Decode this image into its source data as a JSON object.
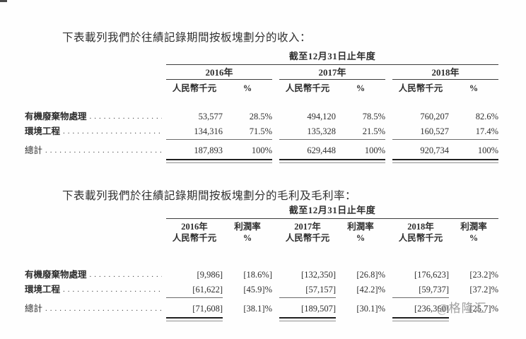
{
  "intro": {
    "revenue": "下表載列我們於往績記錄期間按板塊劃分的收入：",
    "gross_profit": "下表載列我們於往績記錄期間按板塊劃分的毛利及毛利率："
  },
  "leader_dots": "...........................................................",
  "revenue_table": {
    "period_header": "截至12月31日止年度",
    "years": [
      "2016年",
      "2017年",
      "2018年"
    ],
    "unit_headers": [
      "人民幣千元",
      "%",
      "人民幣千元",
      "%",
      "人民幣千元",
      "%"
    ],
    "rows": [
      {
        "label": "有機廢棄物處理",
        "values": [
          "53,577",
          "28.5%",
          "494,120",
          "78.5%",
          "760,207",
          "82.6%"
        ]
      },
      {
        "label": "環境工程",
        "values": [
          "134,316",
          "71.5%",
          "135,328",
          "21.5%",
          "160,527",
          "17.4%"
        ]
      }
    ],
    "total_row": {
      "label": "總計",
      "values": [
        "187,893",
        "100%",
        "629,448",
        "100%",
        "920,734",
        "100%"
      ]
    }
  },
  "gross_profit_table": {
    "period_header": "截至12月31日止年度",
    "col_headers": [
      "2016年",
      "利潤率",
      "2017年",
      "利潤率",
      "2018年",
      "利潤率"
    ],
    "unit_headers": [
      "人民幣千元",
      "%",
      "人民幣千元",
      "%",
      "人民幣千元",
      "%"
    ],
    "rows": [
      {
        "label": "有機廢棄物處理",
        "values": [
          "[9,986]",
          "[18.6%]",
          "[132,350]",
          "[26.8]%",
          "[176,623]",
          "[23.2]%"
        ]
      },
      {
        "label": "環境工程",
        "values": [
          "[61,622]",
          "[45.9]%",
          "[57,157]",
          "[42.2]%",
          "[59,737]",
          "[37.2]%"
        ]
      }
    ],
    "total_row": {
      "label": "總計",
      "values": [
        "[71,608]",
        "[38.1]%",
        "[189,507]",
        "[30.1]%",
        "[236,360]",
        "[25.7]%"
      ]
    }
  },
  "watermark": "@格隆汇",
  "colors": {
    "ink": "#2e2e2e",
    "rule": "#3c3c3c",
    "watermark": "#8e8e8e"
  }
}
